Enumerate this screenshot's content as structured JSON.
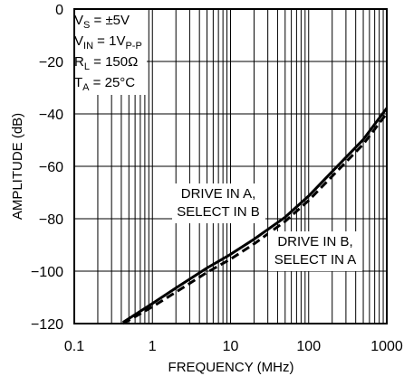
{
  "chart_data": {
    "type": "line",
    "xlabel": "FREQUENCY (MHz)",
    "ylabel": "AMPLITUDE (dB)",
    "xscale": "log",
    "xlim": [
      0.1,
      1000
    ],
    "ylim": [
      -120,
      0
    ],
    "grid": true,
    "xticks": [
      0.1,
      1,
      10,
      100,
      1000
    ],
    "xtick_labels": [
      "0.1",
      "1",
      "10",
      "100",
      "1000"
    ],
    "yticks": [
      0,
      -20,
      -40,
      -60,
      -80,
      -100,
      -120
    ],
    "ytick_labels": [
      "0",
      "−20",
      "−40",
      "−60",
      "−80",
      "−100",
      "−120"
    ],
    "conditions": [
      {
        "main": "V",
        "sub": "S",
        "rest": " = ±5V"
      },
      {
        "main": "V",
        "sub": "IN",
        "rest": " = 1V",
        "sub2": "P-P"
      },
      {
        "main": "R",
        "sub": "L",
        "rest": " = 150Ω"
      },
      {
        "main": "T",
        "sub": "A",
        "rest": " = 25°C"
      }
    ],
    "series": [
      {
        "style": "solid",
        "x": [
          0.42,
          1,
          2,
          5,
          10,
          20,
          50,
          100,
          200,
          500,
          1000
        ],
        "y": [
          -119.5,
          -112.3,
          -106.4,
          -98.8,
          -93.6,
          -87.8,
          -79.4,
          -71.3,
          -62.0,
          -49.8,
          -37.8
        ]
      },
      {
        "style": "dashed",
        "x": [
          0.42,
          1,
          2,
          5,
          10,
          20,
          50,
          100,
          200,
          500,
          1000
        ],
        "y": [
          -120.5,
          -113.6,
          -108.0,
          -100.5,
          -95.4,
          -89.6,
          -81.0,
          -73.0,
          -63.8,
          -51.6,
          -39.8
        ]
      }
    ],
    "annotations": [
      {
        "lines": [
          "DRIVE IN A,",
          "SELECT IN B"
        ]
      },
      {
        "lines": [
          "DRIVE IN B,",
          "SELECT IN A"
        ]
      }
    ]
  }
}
